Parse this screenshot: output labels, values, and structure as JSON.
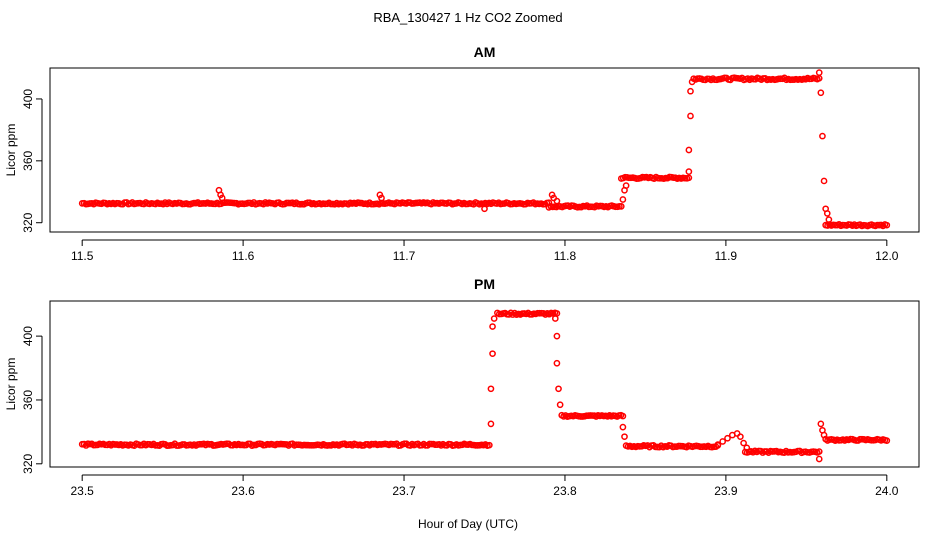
{
  "figure": {
    "title": "RBA_130427  1 Hz CO2 Zoomed",
    "xlabel": "Hour of Day (UTC)"
  },
  "colors": {
    "points": "#ff0000",
    "axes": "#000000",
    "background": "#ffffff"
  },
  "chart_data": [
    {
      "type": "scatter",
      "title": "AM",
      "xlabel": "",
      "ylabel": "Licor ppm",
      "xlim": [
        11.48,
        12.02
      ],
      "ylim": [
        314,
        420
      ],
      "xticks": [
        11.5,
        11.6,
        11.7,
        11.8,
        11.9,
        12.0
      ],
      "xtick_labels": [
        "11.5",
        "11.6",
        "11.7",
        "11.8",
        "11.9",
        "12.0"
      ],
      "yticks": [
        320,
        360,
        400
      ],
      "ytick_labels": [
        "320",
        "360",
        "400"
      ],
      "grid": false,
      "marker": "open-circle",
      "segments": [
        {
          "x_start": 11.5,
          "x_end": 11.79,
          "y": 332.5,
          "noise": 0.6
        },
        {
          "x_start": 11.79,
          "x_end": 11.835,
          "y": 330.5,
          "noise": 0.6
        },
        {
          "x_start": 11.835,
          "x_end": 11.877,
          "y": 349,
          "noise": 0.6
        },
        {
          "x_start": 11.88,
          "x_end": 11.958,
          "y": 413,
          "noise": 0.7
        },
        {
          "x_start": 11.962,
          "x_end": 12.0,
          "y": 318.5,
          "noise": 0.6
        }
      ],
      "points": [
        {
          "x": 11.585,
          "y": 341
        },
        {
          "x": 11.586,
          "y": 338
        },
        {
          "x": 11.587,
          "y": 336
        },
        {
          "x": 11.685,
          "y": 338
        },
        {
          "x": 11.686,
          "y": 336
        },
        {
          "x": 11.75,
          "y": 329
        },
        {
          "x": 11.792,
          "y": 338
        },
        {
          "x": 11.793,
          "y": 336
        },
        {
          "x": 11.795,
          "y": 334
        },
        {
          "x": 11.836,
          "y": 335
        },
        {
          "x": 11.837,
          "y": 341
        },
        {
          "x": 11.838,
          "y": 344
        },
        {
          "x": 11.877,
          "y": 353
        },
        {
          "x": 11.877,
          "y": 367
        },
        {
          "x": 11.878,
          "y": 389
        },
        {
          "x": 11.878,
          "y": 405
        },
        {
          "x": 11.879,
          "y": 411
        },
        {
          "x": 11.958,
          "y": 417
        },
        {
          "x": 11.959,
          "y": 404
        },
        {
          "x": 11.96,
          "y": 376
        },
        {
          "x": 11.961,
          "y": 347
        },
        {
          "x": 11.962,
          "y": 329
        },
        {
          "x": 11.963,
          "y": 326
        },
        {
          "x": 11.964,
          "y": 322
        }
      ]
    },
    {
      "type": "scatter",
      "title": "PM",
      "xlabel": "",
      "ylabel": "Licor ppm",
      "xlim": [
        23.48,
        24.02
      ],
      "ylim": [
        318,
        422
      ],
      "xticks": [
        23.5,
        23.6,
        23.7,
        23.8,
        23.9,
        24.0
      ],
      "xtick_labels": [
        "23.5",
        "23.6",
        "23.7",
        "23.8",
        "23.9",
        "24.0"
      ],
      "yticks": [
        320,
        360,
        400
      ],
      "ytick_labels": [
        "320",
        "360",
        "400"
      ],
      "grid": false,
      "marker": "open-circle",
      "segments": [
        {
          "x_start": 23.5,
          "x_end": 23.753,
          "y": 332,
          "noise": 0.6
        },
        {
          "x_start": 23.758,
          "x_end": 23.795,
          "y": 414,
          "noise": 0.6
        },
        {
          "x_start": 23.798,
          "x_end": 23.836,
          "y": 350,
          "noise": 0.5
        },
        {
          "x_start": 23.838,
          "x_end": 23.895,
          "y": 331,
          "noise": 0.6
        },
        {
          "x_start": 23.912,
          "x_end": 23.958,
          "y": 327.5,
          "noise": 0.6
        },
        {
          "x_start": 23.962,
          "x_end": 24.0,
          "y": 335,
          "noise": 0.5
        }
      ],
      "points": [
        {
          "x": 23.895,
          "y": 332
        },
        {
          "x": 23.898,
          "y": 334
        },
        {
          "x": 23.901,
          "y": 336
        },
        {
          "x": 23.904,
          "y": 338
        },
        {
          "x": 23.907,
          "y": 339
        },
        {
          "x": 23.909,
          "y": 337
        },
        {
          "x": 23.911,
          "y": 333
        },
        {
          "x": 23.913,
          "y": 330
        },
        {
          "x": 23.754,
          "y": 345
        },
        {
          "x": 23.754,
          "y": 367
        },
        {
          "x": 23.755,
          "y": 389
        },
        {
          "x": 23.755,
          "y": 406
        },
        {
          "x": 23.756,
          "y": 411
        },
        {
          "x": 23.794,
          "y": 411
        },
        {
          "x": 23.795,
          "y": 400
        },
        {
          "x": 23.795,
          "y": 383
        },
        {
          "x": 23.796,
          "y": 367
        },
        {
          "x": 23.797,
          "y": 357
        },
        {
          "x": 23.836,
          "y": 343
        },
        {
          "x": 23.837,
          "y": 337
        },
        {
          "x": 23.958,
          "y": 323
        },
        {
          "x": 23.959,
          "y": 345
        },
        {
          "x": 23.96,
          "y": 341
        },
        {
          "x": 23.961,
          "y": 338
        }
      ]
    }
  ]
}
